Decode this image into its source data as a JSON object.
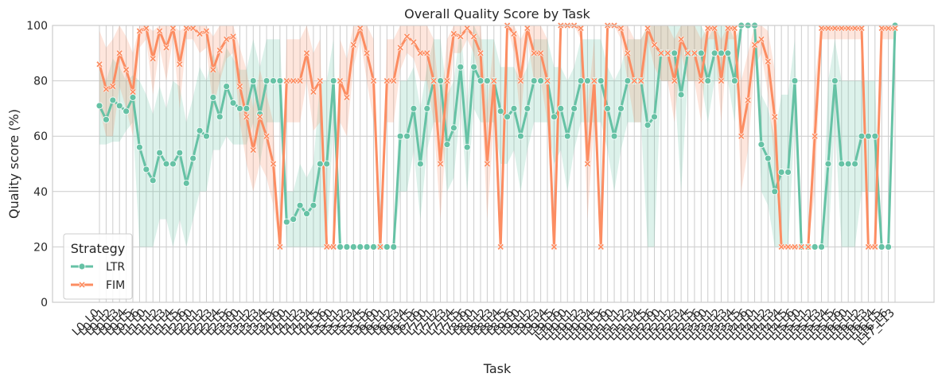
{
  "chart_data": {
    "type": "line",
    "title": "Overall Quality Score by Task",
    "xlabel": "Task",
    "ylabel": "Quality score (%)",
    "ylim": [
      0,
      100
    ],
    "yticks": [
      0,
      20,
      40,
      60,
      80,
      100
    ],
    "grid": true,
    "legend": {
      "title": "Strategy",
      "placement": "lower-left"
    },
    "categories": [
      "L0_L0",
      "L0_L1",
      "L0_L2",
      "L0_L3",
      "L0_L4",
      "L0_L5",
      "L0_L6",
      "L1_L0",
      "L1_L1",
      "L1_L2",
      "L1_L3",
      "L1_L4",
      "L1_L5",
      "L1_L6",
      "L2_L0",
      "L2_L1",
      "L2_L2",
      "L2_L3",
      "L2_L4",
      "L2_L5",
      "L2_L6",
      "L3_L0",
      "L3_L1",
      "L3_L2",
      "L3_L3",
      "L3_L4",
      "L3_L5",
      "L3_L6",
      "L4_L0",
      "L4_L1",
      "L4_L2",
      "L4_L3",
      "L4_L4",
      "L4_L5",
      "L4_L6",
      "L5_L0",
      "L5_L1",
      "L5_L2",
      "L5_L3",
      "L5_L4",
      "L5_L5",
      "L5_L6",
      "L6_L0",
      "L6_L1",
      "L6_L2",
      "L6_L3",
      "L6_L4",
      "L6_L5",
      "L6_L6",
      "L7_L0",
      "L7_L1",
      "L7_L2",
      "L7_L3",
      "L7_L4",
      "L7_L5",
      "L7_L6",
      "L8_L0",
      "L8_L1",
      "L8_L2",
      "L8_L3",
      "L8_L4",
      "L8_L5",
      "L8_L6",
      "L9_L0",
      "L9_L1",
      "L9_L2",
      "L9_L3",
      "L9_L4",
      "L9_L5",
      "L9_L6",
      "L10_L0",
      "L10_L1",
      "L10_L2",
      "L10_L3",
      "L10_L4",
      "L10_L5",
      "L10_L6",
      "L11_L0",
      "L11_L1",
      "L11_L2",
      "L11_L3",
      "L11_L4",
      "L11_L5",
      "L11_L6",
      "L12_L0",
      "L12_L1",
      "L12_L2",
      "L12_L3",
      "L12_L4",
      "L12_L5",
      "L12_L6",
      "L13_L0",
      "L13_L1",
      "L13_L2",
      "L13_L3",
      "L13_L4",
      "L13_L5",
      "L13_L6",
      "L14_L0",
      "L14_L1",
      "L14_L2",
      "L14_L3",
      "L14_L4",
      "L14_L5",
      "L14_L6",
      "L15_L0",
      "L15_L1",
      "L15_L2",
      "L15_L3",
      "L15_L4",
      "L15_L5",
      "L15_L6",
      "L16_L0",
      "L16_L1",
      "L16_L2",
      "L16_L3",
      "L16_L4",
      "L16_L5",
      "L16_L6",
      "L17_L13"
    ],
    "series": [
      {
        "name": "LTR",
        "color": "#66c2a5",
        "marker": "circle",
        "values": [
          71,
          66,
          73,
          71,
          69,
          74,
          56,
          48,
          44,
          54,
          50,
          50,
          54,
          43,
          52,
          62,
          60,
          74,
          67,
          78,
          72,
          70,
          70,
          80,
          68,
          80,
          80,
          80,
          29,
          30,
          35,
          32,
          35,
          50,
          50,
          80,
          20,
          20,
          20,
          20,
          20,
          20,
          20,
          20,
          20,
          60,
          60,
          70,
          50,
          70,
          80,
          80,
          57,
          63,
          85,
          56,
          85,
          80,
          80,
          80,
          69,
          67,
          70,
          60,
          70,
          80,
          80,
          80,
          67,
          70,
          60,
          70,
          80,
          80,
          80,
          80,
          70,
          60,
          70,
          80,
          80,
          80,
          64,
          67,
          90,
          90,
          90,
          75,
          90,
          90,
          90,
          80,
          90,
          90,
          90,
          80,
          100,
          100,
          100,
          57,
          52,
          40,
          47,
          47,
          80,
          20,
          20,
          20,
          20,
          50,
          80,
          50,
          50,
          50,
          60,
          60,
          60,
          20,
          20,
          100
        ],
        "lower": [
          57,
          57,
          58,
          58,
          62,
          65,
          20,
          20,
          20,
          30,
          30,
          20,
          30,
          20,
          30,
          40,
          40,
          55,
          55,
          60,
          57,
          57,
          57,
          65,
          50,
          65,
          65,
          65,
          20,
          20,
          20,
          20,
          20,
          20,
          20,
          65,
          20,
          20,
          20,
          20,
          20,
          20,
          20,
          20,
          20,
          40,
          40,
          55,
          30,
          55,
          65,
          65,
          40,
          45,
          70,
          40,
          70,
          65,
          65,
          65,
          50,
          50,
          55,
          40,
          55,
          65,
          65,
          65,
          50,
          55,
          40,
          55,
          65,
          65,
          65,
          65,
          55,
          40,
          55,
          65,
          65,
          65,
          20,
          20,
          80,
          80,
          80,
          40,
          80,
          80,
          80,
          65,
          80,
          80,
          80,
          65,
          100,
          100,
          100,
          40,
          35,
          20,
          20,
          20,
          65,
          20,
          20,
          20,
          20,
          20,
          65,
          20,
          20,
          20,
          40,
          40,
          40,
          20,
          20,
          100
        ],
        "upper": [
          85,
          80,
          88,
          85,
          80,
          82,
          80,
          75,
          68,
          78,
          70,
          80,
          78,
          65,
          74,
          85,
          80,
          90,
          82,
          92,
          88,
          84,
          84,
          95,
          85,
          95,
          95,
          95,
          40,
          40,
          50,
          45,
          50,
          80,
          80,
          95,
          20,
          20,
          20,
          20,
          20,
          20,
          20,
          20,
          20,
          80,
          80,
          85,
          70,
          85,
          95,
          95,
          75,
          80,
          100,
          72,
          100,
          95,
          95,
          95,
          85,
          85,
          85,
          80,
          85,
          95,
          95,
          95,
          85,
          85,
          80,
          85,
          95,
          95,
          95,
          95,
          85,
          80,
          85,
          95,
          95,
          95,
          100,
          100,
          100,
          100,
          100,
          100,
          100,
          100,
          100,
          95,
          100,
          100,
          100,
          95,
          100,
          100,
          100,
          75,
          70,
          60,
          75,
          75,
          95,
          20,
          20,
          20,
          20,
          80,
          95,
          80,
          80,
          80,
          80,
          80,
          80,
          20,
          20,
          100
        ]
      },
      {
        "name": "FIM",
        "color": "#fc8d62",
        "marker": "x",
        "values": [
          86,
          77,
          78,
          90,
          84,
          76,
          98,
          99,
          88,
          98,
          92,
          99,
          86,
          99,
          99,
          97,
          98,
          84,
          91,
          95,
          96,
          78,
          67,
          55,
          67,
          60,
          50,
          20,
          80,
          80,
          80,
          90,
          76,
          80,
          20,
          20,
          80,
          74,
          93,
          99,
          90,
          80,
          20,
          80,
          80,
          92,
          96,
          94,
          90,
          90,
          80,
          50,
          80,
          97,
          96,
          99,
          96,
          90,
          50,
          80,
          20,
          100,
          97,
          80,
          99,
          90,
          90,
          80,
          20,
          100,
          100,
          100,
          99,
          50,
          80,
          20,
          100,
          100,
          99,
          90,
          80,
          80,
          99,
          93,
          90,
          90,
          80,
          95,
          90,
          90,
          80,
          99,
          99,
          80,
          99,
          99,
          60,
          73,
          93,
          95,
          87,
          67,
          20,
          20,
          20,
          20,
          20,
          60,
          99,
          99,
          99,
          99,
          99,
          99,
          99,
          20,
          20,
          99,
          99,
          99
        ],
        "lower": [
          70,
          60,
          60,
          78,
          70,
          60,
          92,
          95,
          75,
          92,
          80,
          95,
          70,
          95,
          95,
          90,
          92,
          70,
          80,
          88,
          90,
          65,
          50,
          40,
          50,
          45,
          35,
          20,
          65,
          65,
          65,
          80,
          62,
          65,
          20,
          20,
          65,
          60,
          85,
          95,
          80,
          65,
          20,
          65,
          65,
          84,
          90,
          88,
          80,
          80,
          65,
          30,
          65,
          90,
          90,
          95,
          90,
          80,
          30,
          65,
          20,
          100,
          90,
          65,
          95,
          80,
          80,
          65,
          20,
          100,
          100,
          100,
          95,
          30,
          65,
          20,
          100,
          100,
          95,
          80,
          65,
          65,
          95,
          85,
          80,
          80,
          65,
          90,
          80,
          80,
          65,
          95,
          95,
          65,
          95,
          95,
          40,
          55,
          85,
          90,
          75,
          50,
          20,
          20,
          20,
          20,
          20,
          40,
          95,
          95,
          95,
          95,
          95,
          95,
          95,
          20,
          20,
          95,
          95,
          95
        ],
        "upper": [
          98,
          92,
          95,
          100,
          96,
          90,
          100,
          100,
          98,
          100,
          100,
          100,
          98,
          100,
          100,
          100,
          100,
          96,
          100,
          100,
          100,
          92,
          84,
          70,
          84,
          75,
          65,
          20,
          95,
          95,
          95,
          100,
          90,
          95,
          20,
          20,
          95,
          88,
          100,
          100,
          100,
          95,
          20,
          95,
          95,
          100,
          100,
          100,
          100,
          100,
          95,
          70,
          95,
          100,
          100,
          100,
          100,
          100,
          70,
          95,
          20,
          100,
          100,
          95,
          100,
          100,
          100,
          95,
          20,
          100,
          100,
          100,
          100,
          70,
          95,
          20,
          100,
          100,
          100,
          100,
          95,
          95,
          100,
          100,
          100,
          100,
          95,
          100,
          100,
          100,
          95,
          100,
          100,
          95,
          100,
          100,
          80,
          90,
          100,
          100,
          98,
          84,
          20,
          20,
          20,
          20,
          20,
          80,
          100,
          100,
          100,
          100,
          100,
          100,
          100,
          20,
          20,
          100,
          100,
          100
        ]
      }
    ]
  }
}
